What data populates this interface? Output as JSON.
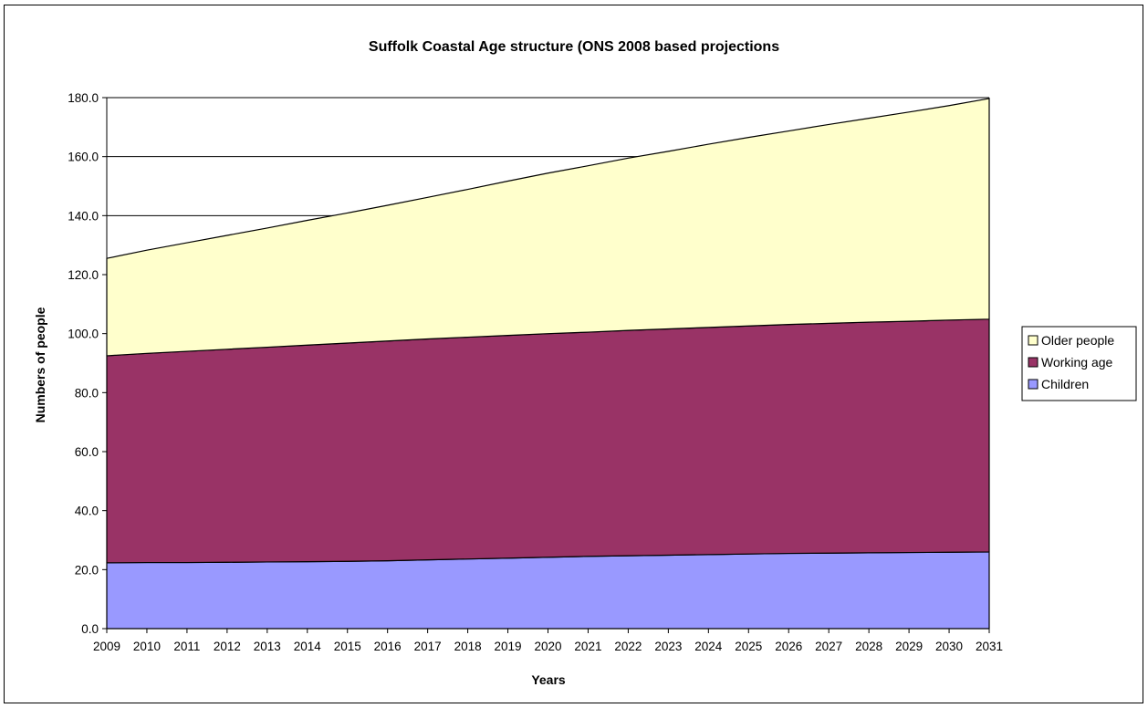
{
  "chart_data": {
    "type": "area",
    "stacked": true,
    "title": "Suffolk Coastal Age structure (ONS 2008 based projections",
    "xlabel": "Years",
    "ylabel": "Numbers of people",
    "ylim": [
      0,
      180
    ],
    "y_ticks": [
      0,
      20,
      40,
      60,
      80,
      100,
      120,
      140,
      160,
      180
    ],
    "y_tick_labels": [
      "0.0",
      "20.0",
      "40.0",
      "60.0",
      "80.0",
      "100.0",
      "120.0",
      "140.0",
      "160.0",
      "180.0"
    ],
    "grid": true,
    "legend_position": "right",
    "categories": [
      "2009",
      "2010",
      "2011",
      "2012",
      "2013",
      "2014",
      "2015",
      "2016",
      "2017",
      "2018",
      "2019",
      "2020",
      "2021",
      "2022",
      "2023",
      "2024",
      "2025",
      "2026",
      "2027",
      "2028",
      "2029",
      "2030",
      "2031"
    ],
    "series": [
      {
        "name": "Children",
        "color": "#9999FF",
        "values": [
          22.3,
          22.4,
          22.4,
          22.5,
          22.6,
          22.7,
          22.8,
          23.0,
          23.3,
          23.6,
          23.9,
          24.2,
          24.5,
          24.7,
          24.9,
          25.1,
          25.3,
          25.5,
          25.6,
          25.7,
          25.8,
          25.9,
          26.0
        ]
      },
      {
        "name": "Working age",
        "color": "#993366",
        "values": [
          70.2,
          70.9,
          71.6,
          72.2,
          72.8,
          73.4,
          74.0,
          74.5,
          74.9,
          75.2,
          75.5,
          75.8,
          76.0,
          76.4,
          76.7,
          77.0,
          77.3,
          77.6,
          77.9,
          78.2,
          78.4,
          78.7,
          78.9
        ]
      },
      {
        "name": "Older people",
        "color": "#FFFFCC",
        "values": [
          33.0,
          35.0,
          36.8,
          38.6,
          40.4,
          42.3,
          44.1,
          46.0,
          48.0,
          50.1,
          52.3,
          54.4,
          56.4,
          58.4,
          60.2,
          62.1,
          63.9,
          65.6,
          67.4,
          69.1,
          70.9,
          72.7,
          74.8
        ]
      }
    ]
  }
}
